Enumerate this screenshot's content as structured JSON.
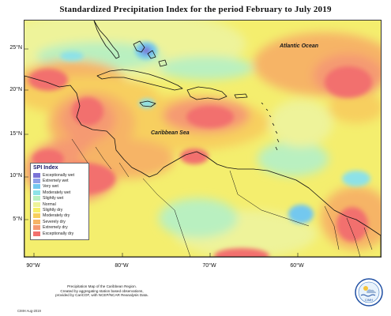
{
  "title": "Standardized Precipitation Index for the period February to July 2019",
  "map": {
    "latitude_labels": [
      "25°N",
      "20°N",
      "15°N",
      "10°N",
      "5°N"
    ],
    "longitude_labels": [
      "90°W",
      "80°W",
      "70°W",
      "60°W"
    ],
    "place_labels": {
      "atlantic": "Atlantic Ocean",
      "caribbean": "Caribbean Sea"
    }
  },
  "legend": {
    "title": "SPI Index",
    "items": [
      {
        "label": "Exceptionally wet",
        "color": "#7b73d6"
      },
      {
        "label": "Extremely wet",
        "color": "#8fa0e8"
      },
      {
        "label": "Very wet",
        "color": "#73c8ef"
      },
      {
        "label": "Moderately wet",
        "color": "#8de2e8"
      },
      {
        "label": "Slightly wet",
        "color": "#b9f0c0"
      },
      {
        "label": "Normal",
        "color": "#eef39a"
      },
      {
        "label": "Slightly dry",
        "color": "#f6ef6a"
      },
      {
        "label": "Moderately dry",
        "color": "#f7cf5e"
      },
      {
        "label": "Severely dry",
        "color": "#f6b466"
      },
      {
        "label": "Extremely dry",
        "color": "#f59a72"
      },
      {
        "label": "Exceptionally dry",
        "color": "#f2706e"
      }
    ]
  },
  "footnote": {
    "lines": [
      "Precipitation Map of the Caribbean Region.",
      "Created by aggregating station based observations,",
      "provided by CariCOF, with NCEP/NCAR Reanalysis Data."
    ],
    "credit": "CIMH Aug-2019",
    "logo_text": "CIMH"
  }
}
